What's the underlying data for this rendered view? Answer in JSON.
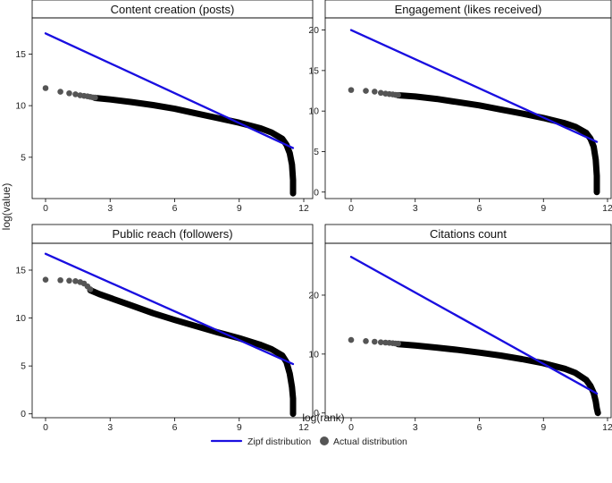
{
  "figure": {
    "xlabel": "log(rank)",
    "ylabel": "log(value)",
    "colors": {
      "zipf": "#1a0fe0",
      "actual": "#555555"
    },
    "legend": [
      {
        "label": "Zipf distribution",
        "marker": "line",
        "color": "#1a0fe0"
      },
      {
        "label": "Actual distribution",
        "marker": "circle",
        "color": "#555555"
      }
    ]
  },
  "chart_data": [
    {
      "type": "scatter",
      "title": "Content creation (posts)",
      "xlabel": "log(rank)",
      "ylabel": "log(value)",
      "xlim": [
        -0.4,
        12
      ],
      "ylim": [
        1.0,
        18.5
      ],
      "xticks": [
        0,
        3,
        6,
        9,
        12
      ],
      "yticks": [
        5,
        10,
        15
      ],
      "zipf_line": {
        "x": [
          0,
          11.5
        ],
        "y": [
          17.0,
          5.9
        ]
      },
      "actual_points": {
        "x": [
          0,
          0.69,
          1.1,
          1.39,
          1.61,
          1.79,
          1.95,
          2.08,
          2.2,
          2.3
        ],
        "y": [
          11.7,
          11.35,
          11.2,
          11.1,
          11.0,
          10.95,
          10.9,
          10.85,
          10.8,
          10.78
        ]
      },
      "actual_curve": {
        "x": [
          2.3,
          3,
          4,
          5,
          6,
          7,
          8,
          9,
          10,
          10.5,
          11,
          11.2,
          11.35,
          11.45,
          11.5,
          11.5
        ],
        "y": [
          10.75,
          10.6,
          10.35,
          10.05,
          9.7,
          9.25,
          8.8,
          8.35,
          7.8,
          7.4,
          6.8,
          6.2,
          5.4,
          4.3,
          2.8,
          1.5
        ]
      },
      "grid": false
    },
    {
      "type": "scatter",
      "title": "Engagement (likes received)",
      "xlabel": "log(rank)",
      "ylabel": "log(value)",
      "xlim": [
        -0.4,
        12
      ],
      "ylim": [
        -0.8,
        21.5
      ],
      "xticks": [
        0,
        3,
        6,
        9,
        12
      ],
      "yticks": [
        0,
        5,
        10,
        15,
        20
      ],
      "zipf_line": {
        "x": [
          0,
          11.5
        ],
        "y": [
          20.0,
          6.2
        ]
      },
      "actual_points": {
        "x": [
          0,
          0.69,
          1.1,
          1.39,
          1.61,
          1.79,
          1.95,
          2.08,
          2.2
        ],
        "y": [
          12.6,
          12.5,
          12.4,
          12.25,
          12.15,
          12.1,
          12.05,
          12.0,
          11.98
        ]
      },
      "actual_curve": {
        "x": [
          2.2,
          3,
          4,
          5,
          6,
          7,
          8,
          9,
          10,
          10.5,
          11,
          11.2,
          11.35,
          11.45,
          11.5,
          11.5
        ],
        "y": [
          11.95,
          11.8,
          11.5,
          11.1,
          10.7,
          10.2,
          9.7,
          9.15,
          8.5,
          8.05,
          7.3,
          6.6,
          5.6,
          4.0,
          2.0,
          0.0
        ]
      },
      "grid": false
    },
    {
      "type": "scatter",
      "title": "Public reach (followers)",
      "xlabel": "log(rank)",
      "ylabel": "log(value)",
      "xlim": [
        -0.4,
        12
      ],
      "ylim": [
        -0.4,
        17.8
      ],
      "xticks": [
        0,
        3,
        6,
        9,
        12
      ],
      "yticks": [
        0,
        5,
        10,
        15
      ],
      "zipf_line": {
        "x": [
          0,
          11.5
        ],
        "y": [
          16.7,
          5.2
        ]
      },
      "actual_points": {
        "x": [
          0,
          0.69,
          1.1,
          1.39,
          1.61,
          1.79,
          1.95,
          2.08
        ],
        "y": [
          14.0,
          13.95,
          13.9,
          13.85,
          13.75,
          13.6,
          13.3,
          13.0
        ]
      },
      "actual_curve": {
        "x": [
          2.08,
          2.5,
          3,
          4,
          5,
          6,
          7,
          8,
          9,
          10,
          10.5,
          11,
          11.2,
          11.35,
          11.45,
          11.5,
          11.5
        ],
        "y": [
          12.9,
          12.5,
          12.1,
          11.3,
          10.5,
          9.8,
          9.15,
          8.5,
          7.9,
          7.2,
          6.75,
          6.1,
          5.4,
          4.2,
          2.8,
          1.6,
          0.0
        ]
      },
      "grid": false
    },
    {
      "type": "scatter",
      "title": "Citations count",
      "xlabel": "log(rank)",
      "ylabel": "log(value)",
      "xlim": [
        -0.4,
        12
      ],
      "ylim": [
        -0.8,
        28.8
      ],
      "xticks": [
        0,
        3,
        6,
        9,
        12
      ],
      "yticks": [
        0,
        10,
        20
      ],
      "zipf_line": {
        "x": [
          0,
          11.5
        ],
        "y": [
          26.5,
          3.3
        ]
      },
      "actual_points": {
        "x": [
          0,
          0.69,
          1.1,
          1.39,
          1.61,
          1.79,
          1.95,
          2.08,
          2.2
        ],
        "y": [
          12.4,
          12.2,
          12.1,
          12.0,
          11.95,
          11.9,
          11.85,
          11.8,
          11.78
        ]
      },
      "actual_curve": {
        "x": [
          2.2,
          3,
          4,
          5,
          6,
          7,
          8,
          9,
          10,
          10.5,
          11,
          11.2,
          11.35,
          11.45,
          11.5,
          11.55
        ],
        "y": [
          11.7,
          11.45,
          11.1,
          10.7,
          10.25,
          9.75,
          9.15,
          8.45,
          7.5,
          6.8,
          5.6,
          4.6,
          3.4,
          2.0,
          0.8,
          0.0
        ]
      },
      "grid": false
    }
  ]
}
